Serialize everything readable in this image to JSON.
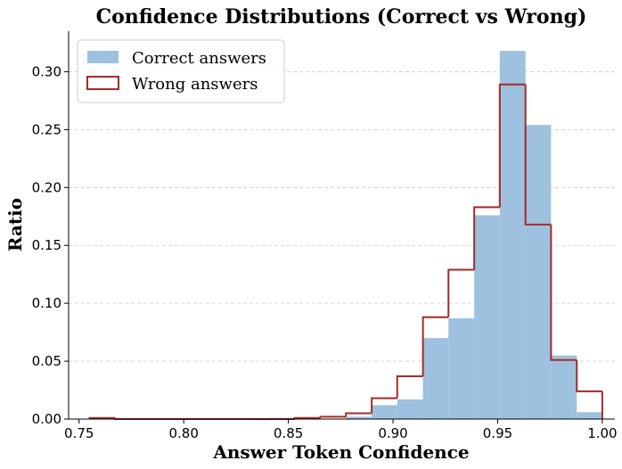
{
  "chart_data": {
    "type": "histogram",
    "title": "Confidence Distributions (Correct vs Wrong)",
    "xlabel": "Answer Token Confidence",
    "ylabel": "Ratio",
    "xlim": [
      0.745,
      1.006
    ],
    "ylim": [
      0,
      0.335
    ],
    "x_ticks": [
      0.75,
      0.8,
      0.85,
      0.9,
      0.95,
      1.0
    ],
    "x_tick_labels": [
      "0.75",
      "0.80",
      "0.85",
      "0.90",
      "0.95",
      "1.00"
    ],
    "y_ticks": [
      0,
      0.05,
      0.1,
      0.15,
      0.2,
      0.25,
      0.3
    ],
    "y_tick_labels": [
      "0.00",
      "0.05",
      "0.10",
      "0.15",
      "0.20",
      "0.25",
      "0.30"
    ],
    "grid": "y-dashed",
    "legend_position": "top-left",
    "bin_edges": [
      0.755,
      0.7673,
      0.7795,
      0.7918,
      0.804,
      0.8163,
      0.8285,
      0.8408,
      0.853,
      0.8653,
      0.8775,
      0.8898,
      0.902,
      0.9143,
      0.9265,
      0.9388,
      0.951,
      0.9633,
      0.9755,
      0.9878,
      1.0
    ],
    "series": [
      {
        "name": "Correct answers",
        "style": "filled",
        "color": "#9dc1de",
        "values": [
          0.0,
          0.0,
          0.0,
          0.0,
          0.0,
          0.0,
          0.0,
          0.001,
          0.0,
          0.0,
          0.002,
          0.012,
          0.017,
          0.07,
          0.087,
          0.176,
          0.318,
          0.254,
          0.055,
          0.006
        ]
      },
      {
        "name": "Wrong answers",
        "style": "step",
        "color": "#a52a2a",
        "values": [
          0.001,
          0.0,
          0.0,
          0.0,
          0.0,
          0.0,
          0.0,
          0.0,
          0.001,
          0.002,
          0.005,
          0.018,
          0.037,
          0.088,
          0.129,
          0.183,
          0.289,
          0.168,
          0.051,
          0.024
        ]
      }
    ]
  }
}
